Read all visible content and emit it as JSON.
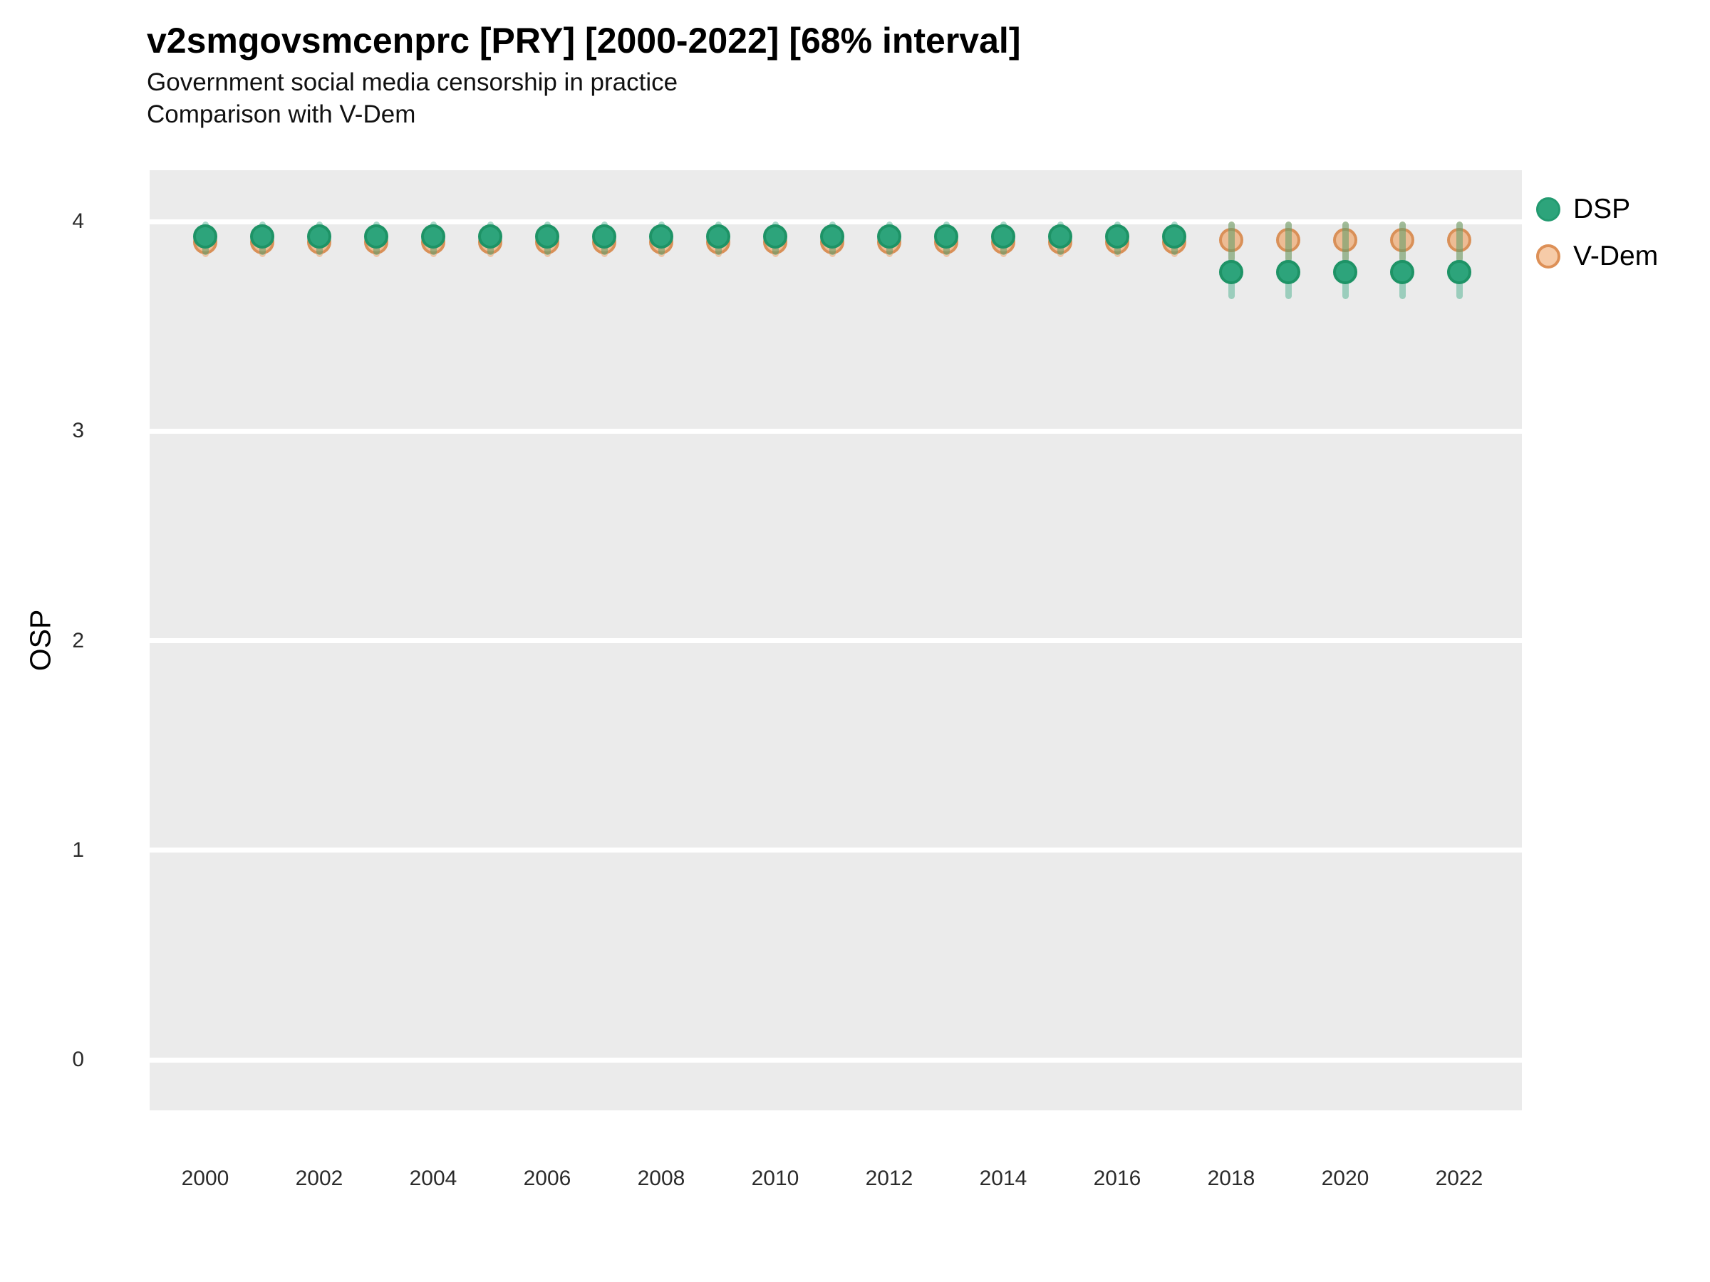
{
  "header": {
    "title": "v2smgovsmcenprc [PRY] [2000-2022] [68% interval]",
    "subtitle1": "Government social media censorship in practice",
    "subtitle2": "Comparison with V-Dem"
  },
  "y_axis": {
    "title": "OSP",
    "ticks": [
      4,
      3,
      2,
      1,
      0
    ]
  },
  "x_axis": {
    "ticks": [
      2000,
      2002,
      2004,
      2006,
      2008,
      2010,
      2012,
      2014,
      2016,
      2018,
      2020,
      2022
    ]
  },
  "legend": {
    "items": [
      {
        "label": "DSP",
        "swatch": "green-circle"
      },
      {
        "label": "V-Dem",
        "swatch": "orange-circle"
      }
    ]
  },
  "colors": {
    "dsp": "#2DA47B",
    "dsp_dark": "#1E9366",
    "vdem": "#EFA060",
    "vdem_dark": "#DD9057",
    "panel_bg": "#EBEBEB",
    "gridline": "#FFFFFF"
  },
  "chart_data": {
    "type": "pointrange-scatter",
    "title": "v2smgovsmcenprc [PRY] [2000-2022] [68% interval]",
    "subtitle": "Government social media censorship in practice — Comparison with V-Dem",
    "xlabel": "",
    "ylabel": "OSP",
    "interval": "68%",
    "ylim": [
      -0.24,
      4.24
    ],
    "y_ticks": [
      0,
      1,
      2,
      3,
      4
    ],
    "x_ticks_shown": [
      2000,
      2002,
      2004,
      2006,
      2008,
      2010,
      2012,
      2014,
      2016,
      2018,
      2020,
      2022
    ],
    "grid": "major-white-on-gray",
    "legend_position": "right",
    "x": [
      2000,
      2001,
      2002,
      2003,
      2004,
      2005,
      2006,
      2007,
      2008,
      2009,
      2010,
      2011,
      2012,
      2013,
      2014,
      2015,
      2016,
      2017,
      2018,
      2019,
      2020,
      2021,
      2022
    ],
    "series": [
      {
        "name": "DSP",
        "values": [
          3.93,
          3.93,
          3.93,
          3.93,
          3.93,
          3.93,
          3.93,
          3.93,
          3.93,
          3.93,
          3.93,
          3.93,
          3.93,
          3.93,
          3.93,
          3.93,
          3.93,
          3.93,
          3.76,
          3.76,
          3.76,
          3.76,
          3.76
        ],
        "ci_low": [
          3.84,
          3.84,
          3.84,
          3.84,
          3.84,
          3.84,
          3.84,
          3.84,
          3.84,
          3.84,
          3.84,
          3.84,
          3.84,
          3.84,
          3.84,
          3.84,
          3.84,
          3.84,
          3.63,
          3.63,
          3.63,
          3.63,
          3.63
        ],
        "ci_high": [
          4.0,
          4.0,
          4.0,
          4.0,
          4.0,
          4.0,
          4.0,
          4.0,
          4.0,
          4.0,
          4.0,
          4.0,
          4.0,
          4.0,
          4.0,
          4.0,
          4.0,
          4.0,
          4.0,
          4.0,
          4.0,
          4.0,
          4.0
        ]
      },
      {
        "name": "V-Dem",
        "values": [
          3.9,
          3.9,
          3.9,
          3.9,
          3.9,
          3.9,
          3.9,
          3.9,
          3.9,
          3.9,
          3.9,
          3.9,
          3.9,
          3.9,
          3.9,
          3.9,
          3.9,
          3.9,
          3.91,
          3.91,
          3.91,
          3.91,
          3.91
        ],
        "ci_low": [
          3.83,
          3.83,
          3.83,
          3.83,
          3.83,
          3.83,
          3.83,
          3.83,
          3.83,
          3.83,
          3.83,
          3.83,
          3.83,
          3.83,
          3.83,
          3.83,
          3.83,
          3.83,
          3.81,
          3.81,
          3.81,
          3.81,
          3.81
        ],
        "ci_high": [
          3.97,
          3.97,
          3.97,
          3.97,
          3.97,
          3.97,
          3.97,
          3.97,
          3.97,
          3.97,
          3.97,
          3.97,
          3.97,
          3.97,
          3.97,
          3.97,
          3.97,
          3.97,
          4.0,
          4.0,
          4.0,
          4.0,
          4.0
        ]
      }
    ]
  }
}
